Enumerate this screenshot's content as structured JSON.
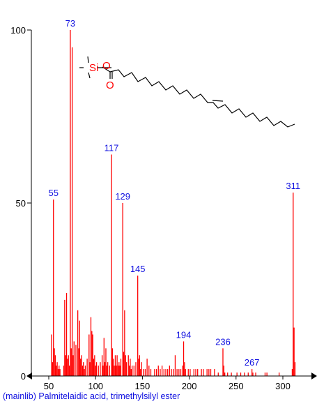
{
  "caption": "(mainlib) Palmitelaidic acid, trimethylsilyl ester",
  "colors": {
    "peaks": "#ff0000",
    "labels": "#1010e0",
    "axes": "#000000",
    "structure_bonds": "#000000",
    "structure_heteroatoms": "#ff0000"
  },
  "structure": {
    "atoms": [
      "Si",
      "O",
      "O"
    ]
  },
  "chart_data": {
    "type": "bar",
    "title": "",
    "xlabel": "",
    "ylabel": "",
    "xlim": [
      43,
      318
    ],
    "ylim": [
      0,
      100
    ],
    "xticks": [
      50,
      100,
      150,
      200,
      250,
      300
    ],
    "yticks": [
      0,
      50,
      100
    ],
    "grid": false,
    "labeled_peaks": [
      {
        "mz": 55,
        "intensity": 51,
        "label": "55"
      },
      {
        "mz": 73,
        "intensity": 100,
        "label": "73"
      },
      {
        "mz": 117,
        "intensity": 64,
        "label": "117"
      },
      {
        "mz": 129,
        "intensity": 50,
        "label": "129"
      },
      {
        "mz": 145,
        "intensity": 29,
        "label": "145"
      },
      {
        "mz": 194,
        "intensity": 10,
        "label": "194"
      },
      {
        "mz": 236,
        "intensity": 8,
        "label": "236"
      },
      {
        "mz": 267,
        "intensity": 2,
        "label": "267"
      },
      {
        "mz": 311,
        "intensity": 53,
        "label": "311"
      }
    ],
    "peaks": [
      [
        53,
        12
      ],
      [
        54,
        4
      ],
      [
        55,
        51
      ],
      [
        56,
        8
      ],
      [
        57,
        6
      ],
      [
        58,
        3
      ],
      [
        59,
        4
      ],
      [
        60,
        2
      ],
      [
        61,
        3
      ],
      [
        62,
        2
      ],
      [
        66,
        3
      ],
      [
        67,
        22
      ],
      [
        68,
        6
      ],
      [
        69,
        24
      ],
      [
        70,
        5
      ],
      [
        71,
        6
      ],
      [
        72,
        3
      ],
      [
        73,
        100
      ],
      [
        74,
        8
      ],
      [
        75,
        95
      ],
      [
        76,
        6
      ],
      [
        77,
        10
      ],
      [
        79,
        9
      ],
      [
        81,
        19
      ],
      [
        82,
        8
      ],
      [
        83,
        16
      ],
      [
        84,
        5
      ],
      [
        85,
        6
      ],
      [
        86,
        3
      ],
      [
        87,
        4
      ],
      [
        88,
        2
      ],
      [
        89,
        3
      ],
      [
        91,
        5
      ],
      [
        93,
        12
      ],
      [
        94,
        4
      ],
      [
        95,
        17
      ],
      [
        96,
        13
      ],
      [
        97,
        12
      ],
      [
        98,
        5
      ],
      [
        99,
        6
      ],
      [
        100,
        3
      ],
      [
        101,
        4
      ],
      [
        103,
        3
      ],
      [
        105,
        4
      ],
      [
        107,
        6
      ],
      [
        108,
        3
      ],
      [
        109,
        11
      ],
      [
        110,
        4
      ],
      [
        111,
        8
      ],
      [
        112,
        3
      ],
      [
        113,
        4
      ],
      [
        115,
        3
      ],
      [
        117,
        64
      ],
      [
        118,
        8
      ],
      [
        119,
        5
      ],
      [
        120,
        3
      ],
      [
        121,
        6
      ],
      [
        122,
        3
      ],
      [
        123,
        6
      ],
      [
        124,
        3
      ],
      [
        125,
        4
      ],
      [
        126,
        3
      ],
      [
        127,
        5
      ],
      [
        129,
        50
      ],
      [
        130,
        7
      ],
      [
        131,
        19
      ],
      [
        132,
        6
      ],
      [
        133,
        4
      ],
      [
        135,
        6
      ],
      [
        136,
        3
      ],
      [
        137,
        5
      ],
      [
        138,
        2
      ],
      [
        139,
        3
      ],
      [
        141,
        3
      ],
      [
        143,
        4
      ],
      [
        145,
        29
      ],
      [
        146,
        5
      ],
      [
        147,
        6
      ],
      [
        148,
        2
      ],
      [
        149,
        4
      ],
      [
        151,
        2
      ],
      [
        153,
        2
      ],
      [
        155,
        5
      ],
      [
        157,
        3
      ],
      [
        159,
        2
      ],
      [
        163,
        2
      ],
      [
        165,
        2
      ],
      [
        167,
        3
      ],
      [
        169,
        2
      ],
      [
        171,
        3
      ],
      [
        173,
        2
      ],
      [
        175,
        2
      ],
      [
        177,
        2
      ],
      [
        179,
        3
      ],
      [
        181,
        2
      ],
      [
        183,
        2
      ],
      [
        185,
        6
      ],
      [
        187,
        2
      ],
      [
        189,
        2
      ],
      [
        191,
        2
      ],
      [
        193,
        3
      ],
      [
        194,
        10
      ],
      [
        195,
        4
      ],
      [
        196,
        2
      ],
      [
        199,
        2
      ],
      [
        201,
        2
      ],
      [
        205,
        2
      ],
      [
        207,
        2
      ],
      [
        209,
        2
      ],
      [
        213,
        2
      ],
      [
        215,
        2
      ],
      [
        219,
        2
      ],
      [
        221,
        2
      ],
      [
        223,
        2
      ],
      [
        227,
        2
      ],
      [
        231,
        1
      ],
      [
        236,
        8
      ],
      [
        237,
        3
      ],
      [
        238,
        1
      ],
      [
        241,
        1
      ],
      [
        245,
        1
      ],
      [
        251,
        1
      ],
      [
        255,
        1
      ],
      [
        259,
        1
      ],
      [
        263,
        1
      ],
      [
        267,
        2
      ],
      [
        268,
        1
      ],
      [
        271,
        1
      ],
      [
        281,
        1
      ],
      [
        283,
        1
      ],
      [
        296,
        1
      ],
      [
        310,
        2
      ],
      [
        311,
        53
      ],
      [
        312,
        14
      ],
      [
        313,
        4
      ]
    ]
  }
}
